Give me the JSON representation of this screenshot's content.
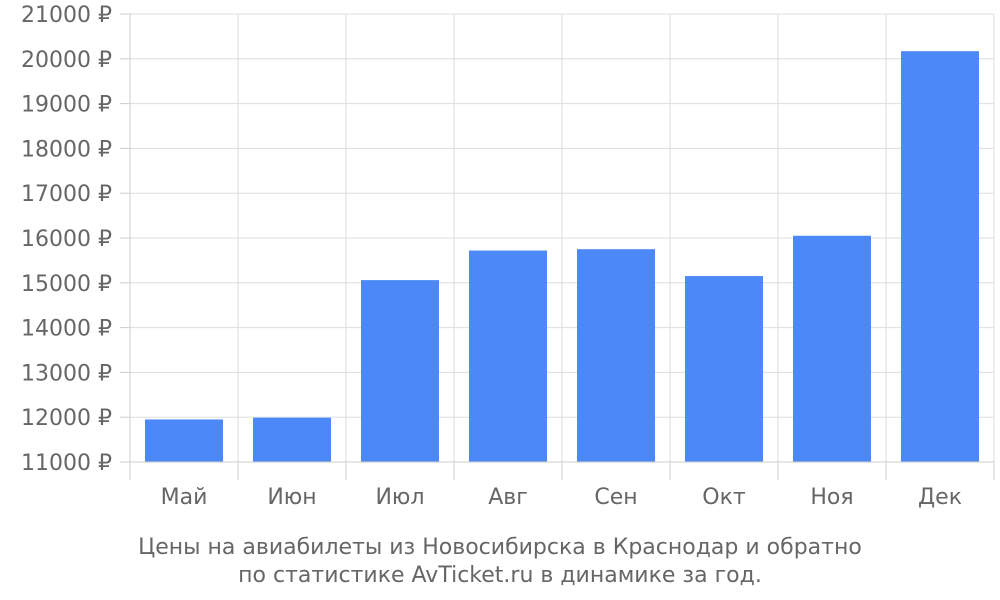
{
  "chart_data": {
    "type": "bar",
    "categories": [
      "Май",
      "Июн",
      "Июл",
      "Авг",
      "Сен",
      "Окт",
      "Ноя",
      "Дек"
    ],
    "values": [
      11950,
      11990,
      15060,
      15720,
      15750,
      15150,
      16050,
      20170
    ],
    "ylim": [
      11000,
      21000
    ],
    "yticks": [
      11000,
      12000,
      13000,
      14000,
      15000,
      16000,
      17000,
      18000,
      19000,
      20000,
      21000
    ],
    "ytick_labels": [
      "11000 ₽",
      "12000 ₽",
      "13000 ₽",
      "14000 ₽",
      "15000 ₽",
      "16000 ₽",
      "17000 ₽",
      "18000 ₽",
      "19000 ₽",
      "20000 ₽",
      "21000 ₽"
    ],
    "grid": true,
    "bar_color": "#4d88f9",
    "grid_color": "#dddddd",
    "axis_color": "#cccccc"
  },
  "caption": {
    "line1": "Цены на авиабилеты из Новосибирска в Краснодар и обратно",
    "line2": "по статистике AvTicket.ru в динамике за год."
  }
}
